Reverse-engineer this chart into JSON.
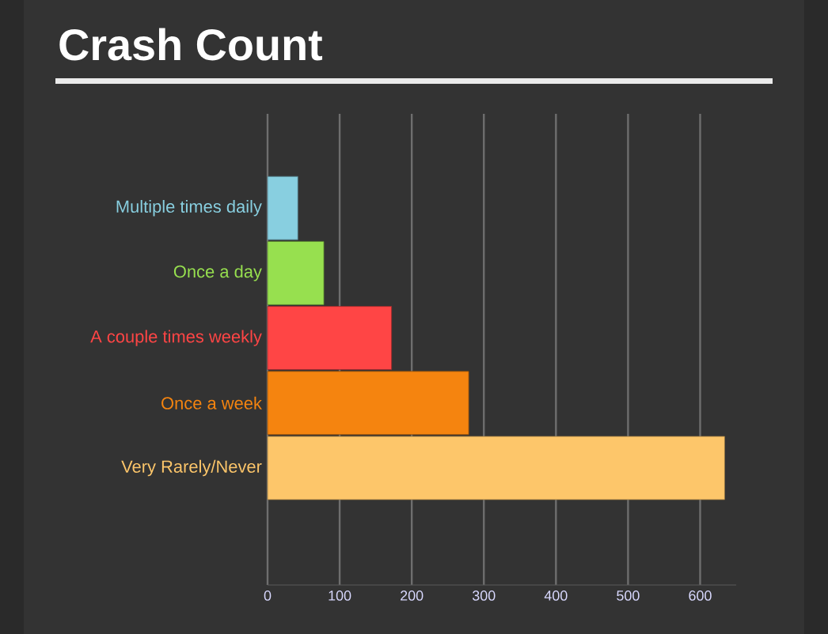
{
  "chart_data": {
    "type": "bar",
    "title": "Crash Count",
    "orientation": "horizontal",
    "categories": [
      "Multiple times daily",
      "Once a day",
      "A couple times weekly",
      "Once a week",
      "Very Rarely/Never"
    ],
    "values": [
      42,
      78,
      172,
      279,
      634
    ],
    "colors": [
      "#88cfe0",
      "#97e04f",
      "#ff4545",
      "#f5840f",
      "#fdc66a"
    ],
    "xlim": [
      0,
      650
    ],
    "xticks": [
      0,
      100,
      200,
      300,
      400,
      500,
      600
    ],
    "grid": "x"
  }
}
